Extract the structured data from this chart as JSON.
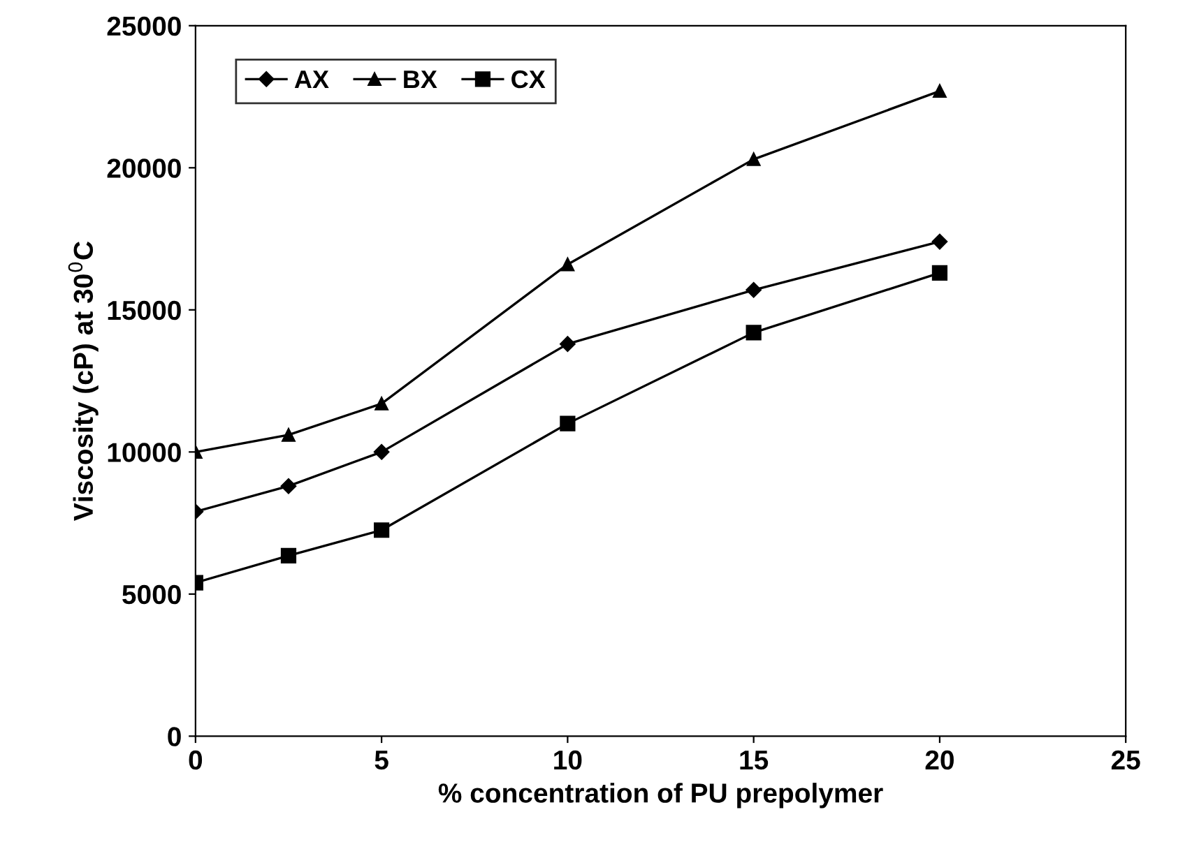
{
  "chart_data": {
    "type": "line",
    "xlabel": "% concentration of PU prepolymer",
    "ylabel": "Viscosity (cP) at 30$^{0}$C",
    "x": [
      0,
      2.5,
      5,
      10,
      15,
      20
    ],
    "series": [
      {
        "name": "AX",
        "color": "#000000",
        "marker": "diamond",
        "values": [
          7900,
          8800,
          10000,
          13800,
          15700,
          17400
        ]
      },
      {
        "name": "BX",
        "color": "#000000",
        "marker": "triangle",
        "values": [
          10000,
          10600,
          11700,
          16600,
          20300,
          22700
        ]
      },
      {
        "name": "CX",
        "color": "#000000",
        "marker": "square",
        "values": [
          5400,
          6350,
          7250,
          11000,
          14200,
          16300
        ]
      }
    ],
    "xlim": [
      0,
      25
    ],
    "xticks": [
      0,
      5,
      10,
      15,
      20,
      25
    ],
    "ylim": [
      0,
      25000
    ],
    "yticks": [
      0,
      5000,
      10000,
      15000,
      20000,
      25000
    ],
    "legend": "top left",
    "line_style": "solid",
    "grid": false
  }
}
